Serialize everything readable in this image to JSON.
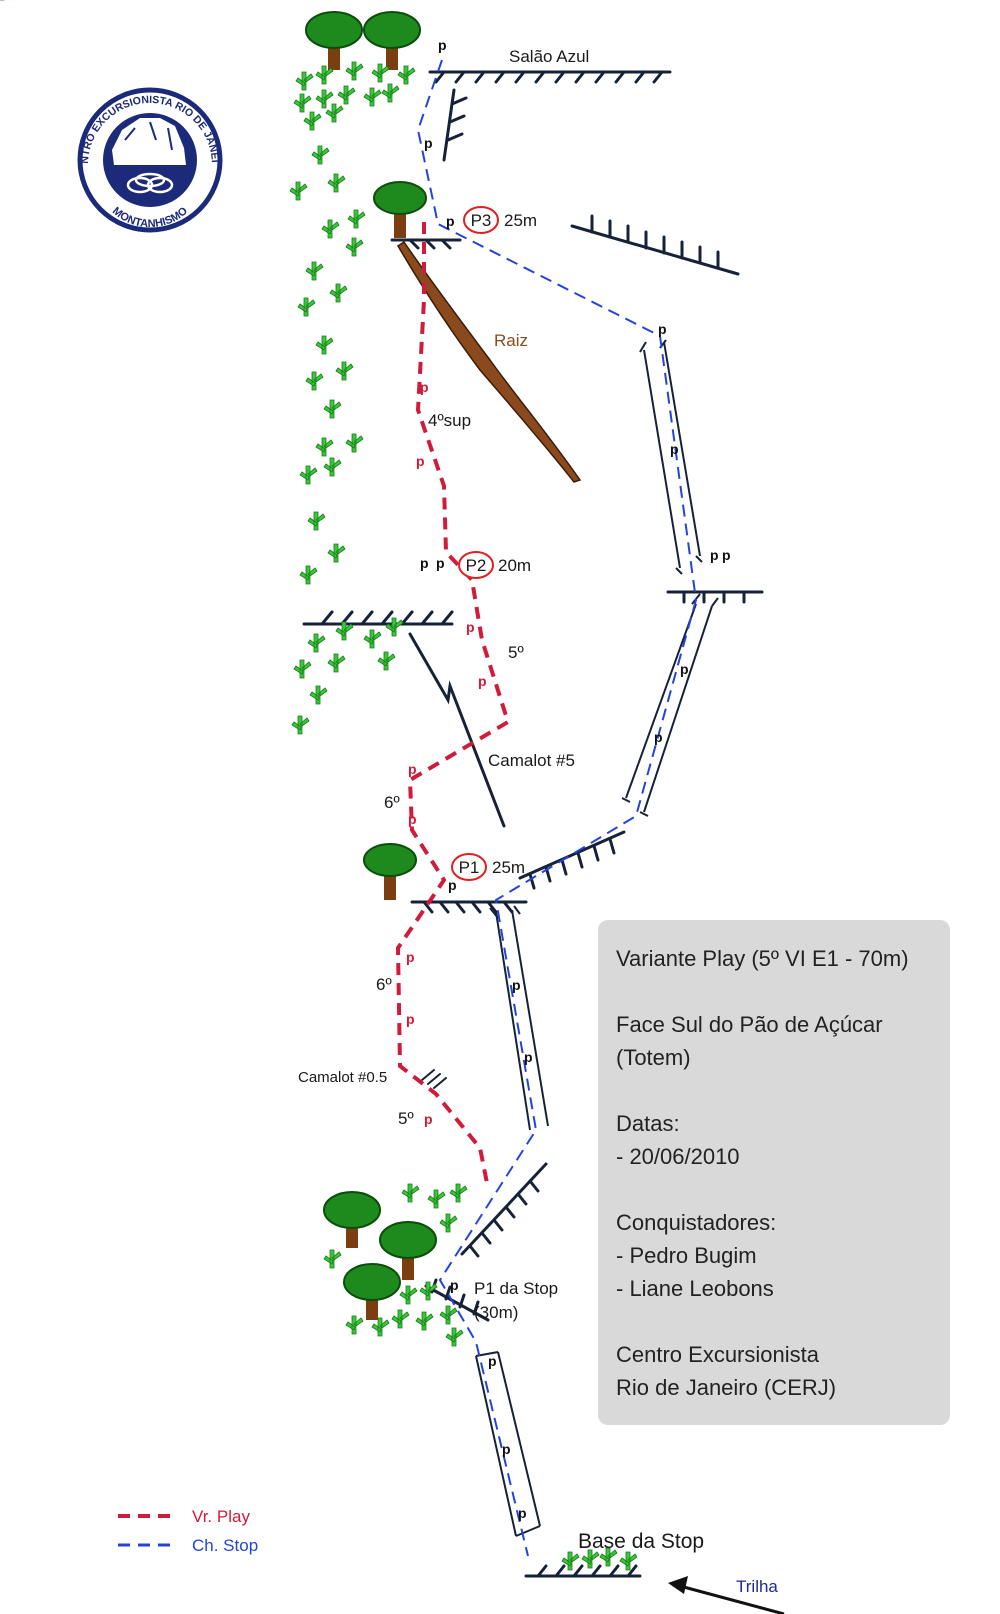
{
  "labels": {
    "salao_azul": "Salão Azul",
    "raiz": "Raiz",
    "four_sup": "4ºsup",
    "five_a": "5º",
    "six_a": "6º",
    "six_b": "6º",
    "five_b": "5º",
    "camalot5": "Camalot #5",
    "camalot05": "Camalot #0.5",
    "p1_stop": "P1 da Stop",
    "p1_stop_len": "(30m)",
    "base_stop": "Base da Stop",
    "trilha": "Trilha"
  },
  "belays": {
    "p3": {
      "label": "P3",
      "length": "25m"
    },
    "p2": {
      "label": "P2",
      "length": "20m"
    },
    "p1": {
      "label": "P1",
      "length": "25m"
    }
  },
  "bolt_symbol": "p",
  "legend": {
    "play": "Vr. Play",
    "stop": "Ch. Stop"
  },
  "info": {
    "title": "Variante Play (5º VI E1 - 70m)",
    "face_line1": "Face Sul do Pão de Açúcar",
    "face_line2": "(Totem)",
    "dates_label": "Datas:",
    "date": "- 20/06/2010",
    "conq_label": "Conquistadores:",
    "conq1": "- Pedro Bugim",
    "conq2": "- Liane Leobons",
    "club1": "Centro Excursionista",
    "club2": "Rio de Janeiro (CERJ)"
  },
  "logo": {
    "text_top": "CENTRO EXCURSIONISTA RIO DE JANEIRO",
    "text_bottom": "MONTANHISMO"
  },
  "colors": {
    "play_route": "#d01c3a",
    "stop_route": "#2244dd",
    "rock": "#152238",
    "root": "#8b4a1e",
    "tree_foliage": "#1e8a1e",
    "tree_trunk": "#7a3e10",
    "grass": "#39c83a",
    "logo_blue": "#1c2a7a"
  }
}
